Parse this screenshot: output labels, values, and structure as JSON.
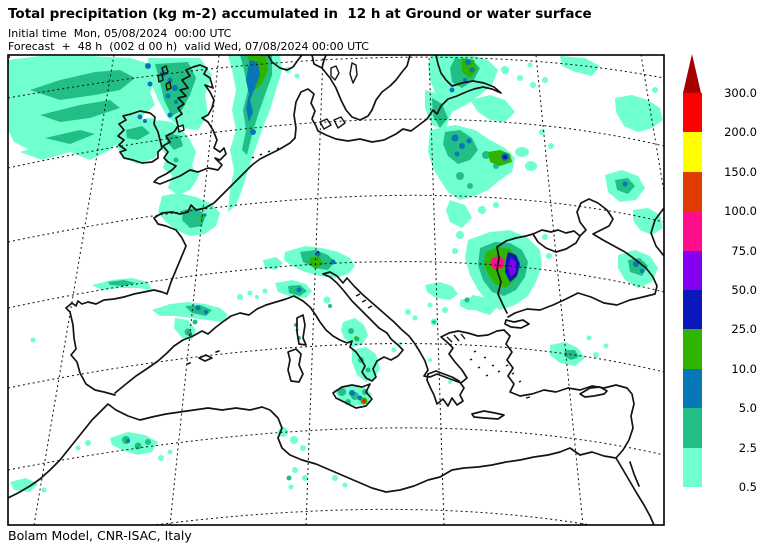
{
  "header": {
    "title": "Total precipitation (kg m-2) accumulated in  12 h at Ground or water surface",
    "initial_time_line": "Initial time  Mon, 05/08/2024  00:00 UTC",
    "forecast_line": "Forecast  +  48 h  (002 d 00 h)  valid Wed, 07/08/2024 00:00 UTC"
  },
  "footer": {
    "credit": "Bolam Model, CNR-ISAC, Italy"
  },
  "legend": {
    "tick_labels": [
      "300.0",
      "200.0",
      "150.0",
      "100.0",
      "75.0",
      "50.0",
      "25.0",
      "10.0",
      "5.0",
      "2.5",
      "0.5"
    ],
    "arrow_color": "#A80000",
    "block_colors": [
      "#FF0000",
      "#FFFF00",
      "#E03C00",
      "#FF0E8C",
      "#8400F0",
      "#0A18BC",
      "#2FB400",
      "#0877B6",
      "#21BF86",
      "#70FFCE"
    ]
  },
  "map": {
    "palette": {
      "p05": "#70FFCE",
      "p2_5": "#21BF86",
      "p5": "#0877B6",
      "p10": "#2FB400",
      "p25": "#0A18BC",
      "p50": "#8400F0",
      "p75": "#FF0E8C",
      "p100": "#E03C00",
      "p200": "#FF0000"
    },
    "coast_color": "#141414",
    "features": {
      "max_cell_black_sea": "magenta/violet core west Black Sea coast",
      "max_cell_sicily": "red core cell on SE Sicily",
      "bands": "aqua bands NW Atlantic, Norway coast, Baltic, Russia"
    }
  }
}
